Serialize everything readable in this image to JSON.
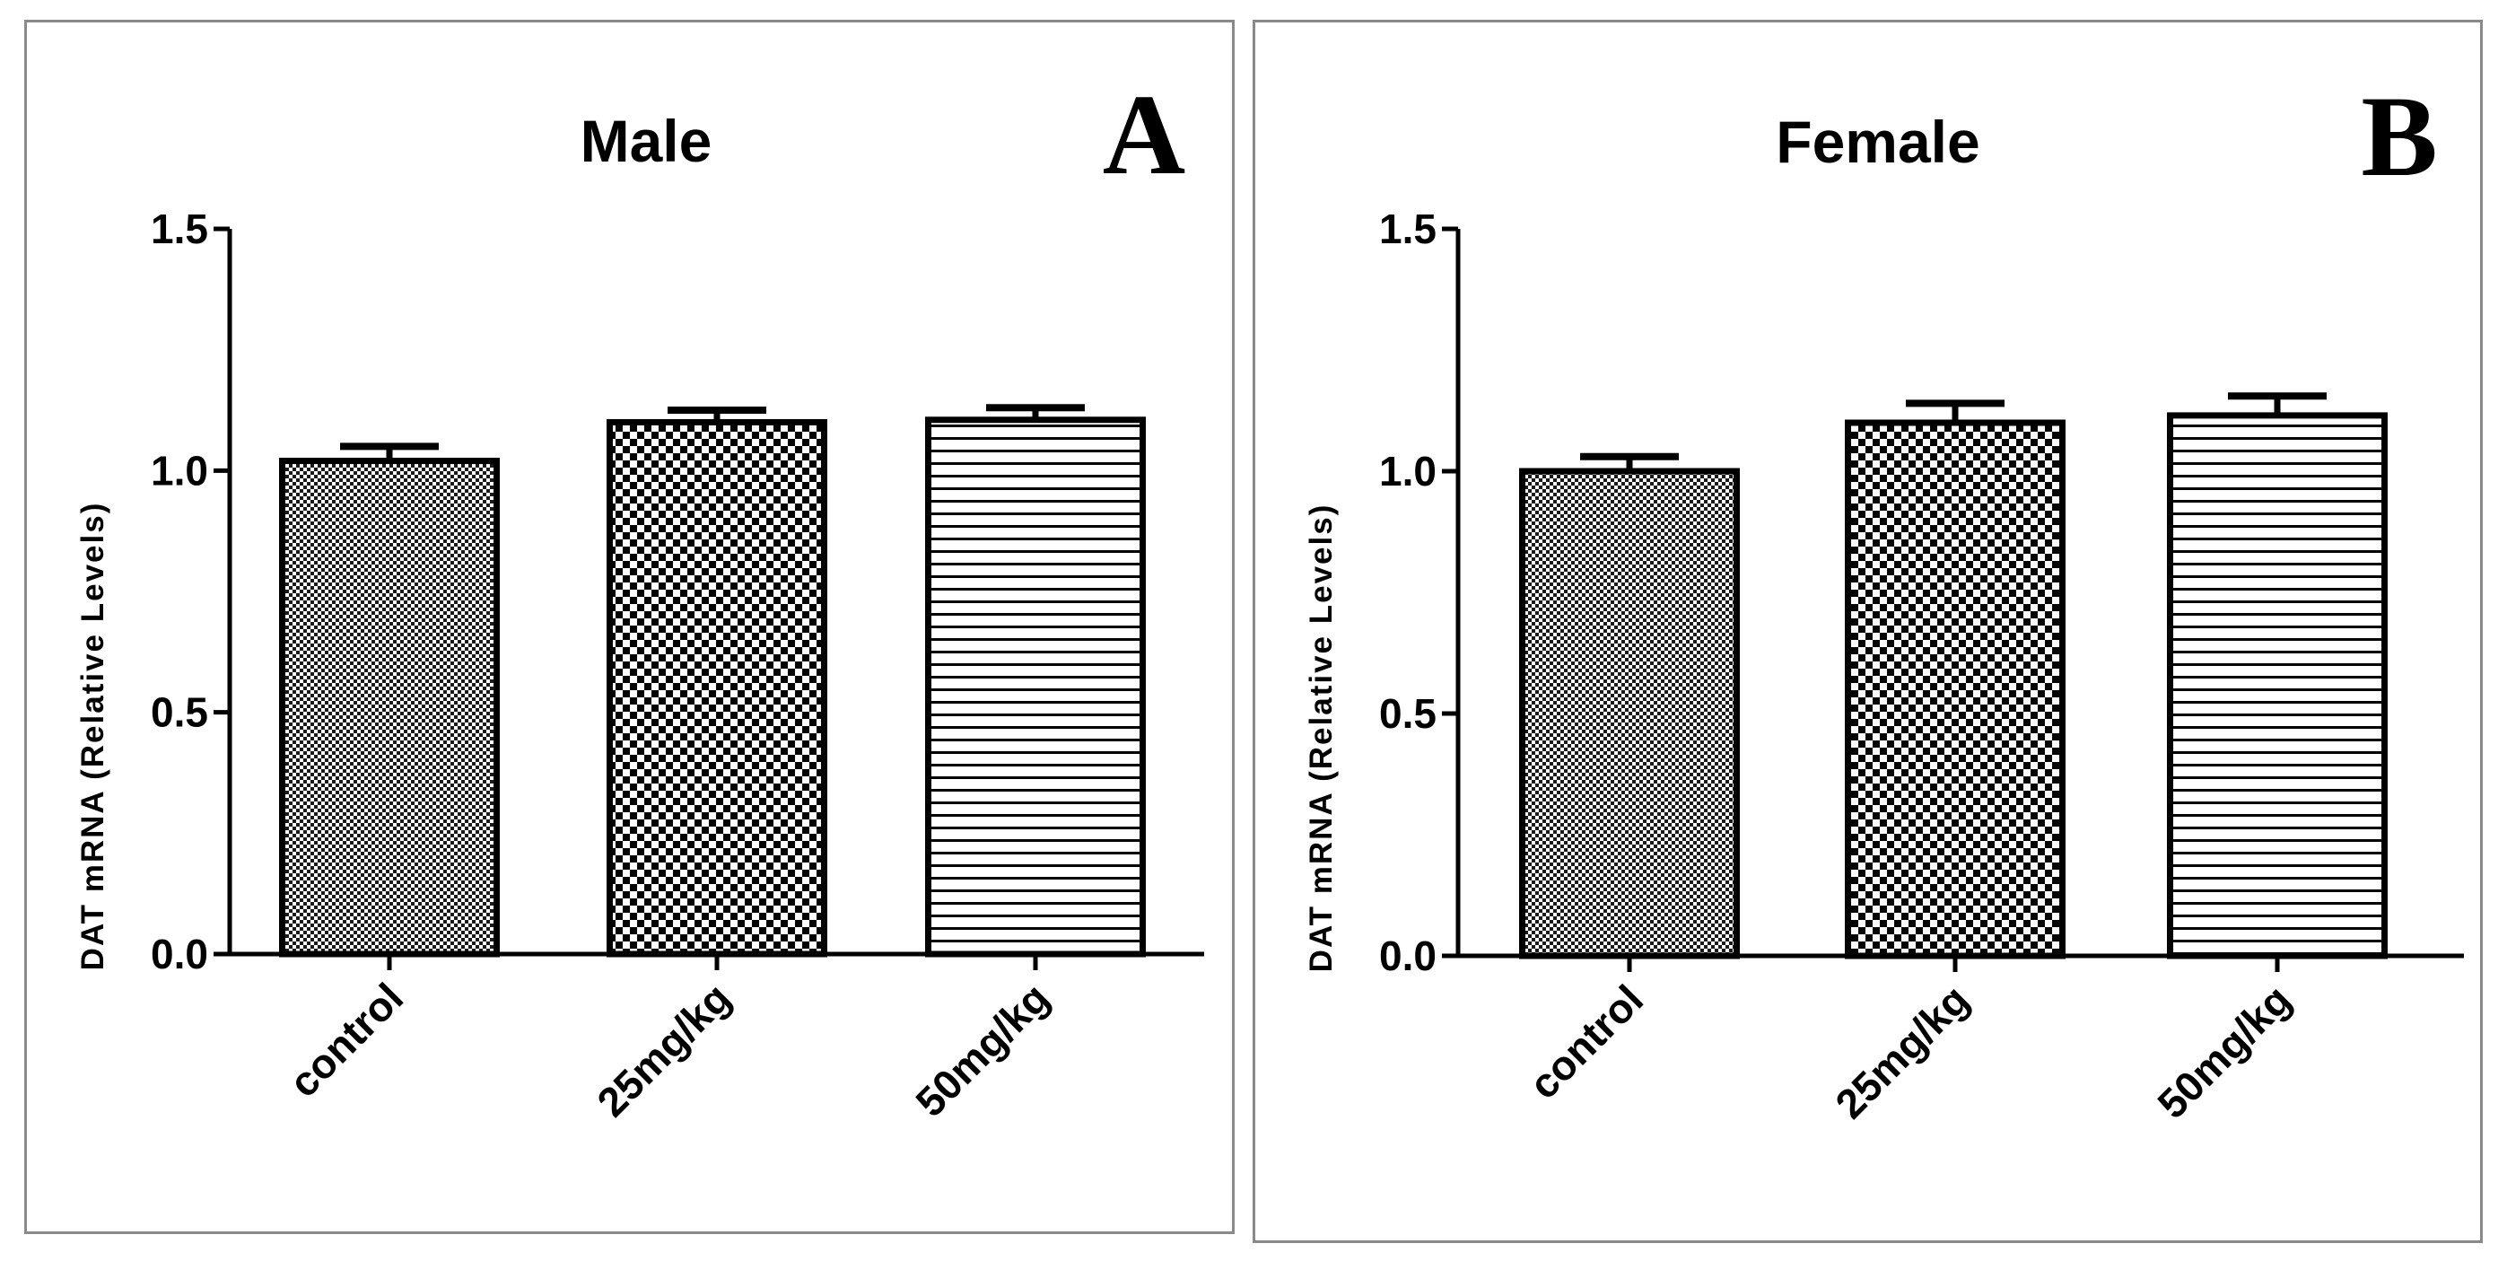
{
  "chart_data": [
    {
      "type": "bar",
      "title": "Male",
      "panel_letter": "A",
      "categories": [
        "control",
        "25mg/kg",
        "50mg/kg"
      ],
      "values": [
        1.02,
        1.1,
        1.105
      ],
      "errors": [
        0.03,
        0.025,
        0.025
      ],
      "patterns": [
        "fine-dots",
        "checker",
        "horizontal-lines"
      ],
      "xlabel": "",
      "ylabel": "DAT mRNA (Relative Levels)",
      "ylim": [
        0,
        1.5
      ],
      "yticks": [
        "0.0",
        "0.5",
        "1.0",
        "1.5"
      ],
      "grid": false
    },
    {
      "type": "bar",
      "title": "Female",
      "panel_letter": "B",
      "categories": [
        "control",
        "25mg/kg",
        "50mg/kg"
      ],
      "values": [
        1.0,
        1.1,
        1.115
      ],
      "errors": [
        0.03,
        0.04,
        0.04
      ],
      "patterns": [
        "fine-dots",
        "checker",
        "horizontal-lines"
      ],
      "xlabel": "",
      "ylabel": "DAT mRNA (Relative Levels)",
      "ylim": [
        0,
        1.5
      ],
      "yticks": [
        "0.0",
        "0.5",
        "1.0",
        "1.5"
      ],
      "grid": false
    }
  ]
}
